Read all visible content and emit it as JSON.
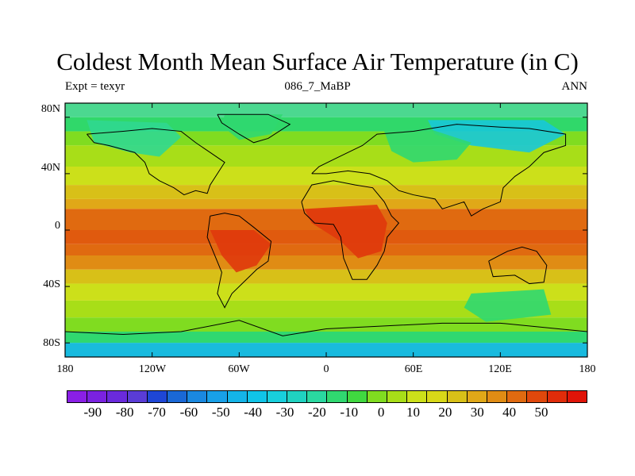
{
  "title": "Coldest Month Mean Surface Air Temperature (in C)",
  "left_label": "Expt = texyr",
  "center_label": "086_7_MaBP",
  "right_label": "ANN",
  "lat_ticks": [
    "80N",
    "40N",
    "0",
    "40S",
    "80S"
  ],
  "lon_ticks": [
    "180",
    "120W",
    "60W",
    "0",
    "60E",
    "120E",
    "180"
  ],
  "colorbar": {
    "labels": [
      "-90",
      "-80",
      "-70",
      "-60",
      "-50",
      "-40",
      "-30",
      "-20",
      "-10",
      "0",
      "10",
      "20",
      "30",
      "40",
      "50"
    ],
    "colors": [
      "#8a1fe6",
      "#7a22e0",
      "#6a2adc",
      "#5a3cd6",
      "#1e46d6",
      "#1a68d6",
      "#1a88e0",
      "#18a0e8",
      "#14b4e8",
      "#10c4e8",
      "#18cfdc",
      "#20d2c0",
      "#2ad8a0",
      "#30d870",
      "#40d840",
      "#80dc20",
      "#a8de18",
      "#cce01a",
      "#d8d818",
      "#d8c018",
      "#e0a818",
      "#e08c14",
      "#e06a10",
      "#e0480c",
      "#e02c0a",
      "#e01408"
    ],
    "highlight_color": "#18c8d8"
  },
  "map": {
    "projection": "cylindrical-equidistant",
    "lon_range": [
      -180,
      180
    ],
    "lat_range": [
      -90,
      90
    ],
    "zonal_bands": [
      {
        "lat": 90,
        "color": "#4cd890"
      },
      {
        "lat": 80,
        "color": "#30d86a"
      },
      {
        "lat": 70,
        "color": "#80dc20"
      },
      {
        "lat": 60,
        "color": "#a8de18"
      },
      {
        "lat": 45,
        "color": "#cce01a"
      },
      {
        "lat": 32,
        "color": "#d8c018"
      },
      {
        "lat": 22,
        "color": "#e0a818"
      },
      {
        "lat": 15,
        "color": "#e06a10"
      },
      {
        "lat": 0,
        "color": "#e05a0e"
      },
      {
        "lat": -10,
        "color": "#e06a10"
      },
      {
        "lat": -18,
        "color": "#e08c14"
      },
      {
        "lat": -28,
        "color": "#d8c018"
      },
      {
        "lat": -38,
        "color": "#cce01a"
      },
      {
        "lat": -50,
        "color": "#a8de18"
      },
      {
        "lat": -62,
        "color": "#80dc20"
      },
      {
        "lat": -72,
        "color": "#30d870"
      },
      {
        "lat": -80,
        "color": "#20d2c0"
      },
      {
        "lat": -86,
        "color": "#18c8d8"
      },
      {
        "lat": -90,
        "color": "#14b4e8"
      }
    ],
    "regions": [
      {
        "name": "north-america-cold",
        "color": "#30d890",
        "poly": [
          [
            -165,
            78
          ],
          [
            -110,
            76
          ],
          [
            -100,
            66
          ],
          [
            -115,
            52
          ],
          [
            -135,
            55
          ],
          [
            -160,
            62
          ]
        ]
      },
      {
        "name": "greenland-cold",
        "color": "#30d870",
        "poly": [
          [
            -70,
            82
          ],
          [
            -30,
            82
          ],
          [
            -38,
            68
          ],
          [
            -60,
            64
          ],
          [
            -72,
            74
          ]
        ]
      },
      {
        "name": "siberia-cold",
        "color": "#18c8d8",
        "poly": [
          [
            70,
            78
          ],
          [
            150,
            78
          ],
          [
            165,
            68
          ],
          [
            140,
            55
          ],
          [
            100,
            60
          ],
          [
            75,
            68
          ]
        ]
      },
      {
        "name": "asia-cool",
        "color": "#30d870",
        "poly": [
          [
            40,
            70
          ],
          [
            70,
            72
          ],
          [
            100,
            62
          ],
          [
            90,
            50
          ],
          [
            60,
            48
          ],
          [
            45,
            56
          ]
        ]
      },
      {
        "name": "africa-hot",
        "color": "#e0380c",
        "poly": [
          [
            -15,
            15
          ],
          [
            35,
            18
          ],
          [
            42,
            5
          ],
          [
            38,
            -15
          ],
          [
            22,
            -20
          ],
          [
            10,
            -8
          ],
          [
            -10,
            5
          ]
        ]
      },
      {
        "name": "south-america-hot",
        "color": "#e0380c",
        "poly": [
          [
            -80,
            0
          ],
          [
            -50,
            0
          ],
          [
            -38,
            -10
          ],
          [
            -48,
            -25
          ],
          [
            -62,
            -30
          ],
          [
            -72,
            -18
          ]
        ]
      },
      {
        "name": "antarctica-cold",
        "color": "#18b8e0",
        "poly": [
          [
            -180,
            -80
          ],
          [
            180,
            -80
          ],
          [
            180,
            -90
          ],
          [
            -180,
            -90
          ]
        ]
      },
      {
        "name": "australia-cool",
        "color": "#30d870",
        "poly": [
          [
            100,
            -45
          ],
          [
            150,
            -42
          ],
          [
            155,
            -60
          ],
          [
            110,
            -65
          ],
          [
            95,
            -55
          ]
        ]
      }
    ],
    "coastlines": [
      [
        [
          -165,
          68
        ],
        [
          -140,
          70
        ],
        [
          -120,
          72
        ],
        [
          -100,
          70
        ],
        [
          -90,
          62
        ],
        [
          -80,
          55
        ],
        [
          -70,
          48
        ],
        [
          -75,
          40
        ],
        [
          -80,
          32
        ],
        [
          -82,
          26
        ],
        [
          -90,
          28
        ],
        [
          -98,
          25
        ],
        [
          -105,
          30
        ],
        [
          -115,
          35
        ],
        [
          -122,
          40
        ],
        [
          -125,
          48
        ],
        [
          -132,
          55
        ],
        [
          -150,
          60
        ],
        [
          -160,
          62
        ],
        [
          -165,
          68
        ]
      ],
      [
        [
          -75,
          82
        ],
        [
          -40,
          82
        ],
        [
          -25,
          75
        ],
        [
          -40,
          65
        ],
        [
          -50,
          62
        ],
        [
          -60,
          68
        ],
        [
          -72,
          76
        ],
        [
          -75,
          82
        ]
      ],
      [
        [
          -10,
          40
        ],
        [
          -5,
          45
        ],
        [
          5,
          50
        ],
        [
          15,
          55
        ],
        [
          25,
          60
        ],
        [
          35,
          68
        ],
        [
          60,
          70
        ],
        [
          90,
          75
        ],
        [
          120,
          73
        ],
        [
          140,
          72
        ],
        [
          165,
          68
        ],
        [
          165,
          60
        ],
        [
          150,
          55
        ],
        [
          140,
          45
        ],
        [
          130,
          38
        ],
        [
          122,
          30
        ],
        [
          120,
          20
        ],
        [
          108,
          15
        ],
        [
          100,
          10
        ],
        [
          95,
          20
        ],
        [
          80,
          15
        ],
        [
          75,
          22
        ],
        [
          60,
          25
        ],
        [
          50,
          28
        ],
        [
          42,
          35
        ],
        [
          30,
          40
        ],
        [
          15,
          42
        ],
        [
          0,
          40
        ],
        [
          -10,
          40
        ]
      ],
      [
        [
          -17,
          20
        ],
        [
          -10,
          32
        ],
        [
          5,
          35
        ],
        [
          20,
          32
        ],
        [
          32,
          30
        ],
        [
          40,
          20
        ],
        [
          45,
          10
        ],
        [
          50,
          5
        ],
        [
          42,
          -5
        ],
        [
          40,
          -15
        ],
        [
          35,
          -25
        ],
        [
          28,
          -35
        ],
        [
          18,
          -35
        ],
        [
          12,
          -20
        ],
        [
          10,
          -5
        ],
        [
          5,
          4
        ],
        [
          -8,
          5
        ],
        [
          -15,
          12
        ],
        [
          -17,
          20
        ]
      ],
      [
        [
          -80,
          10
        ],
        [
          -70,
          12
        ],
        [
          -60,
          10
        ],
        [
          -50,
          2
        ],
        [
          -38,
          -8
        ],
        [
          -40,
          -22
        ],
        [
          -48,
          -28
        ],
        [
          -55,
          -35
        ],
        [
          -65,
          -45
        ],
        [
          -70,
          -55
        ],
        [
          -75,
          -45
        ],
        [
          -72,
          -30
        ],
        [
          -78,
          -15
        ],
        [
          -82,
          -5
        ],
        [
          -80,
          10
        ]
      ],
      [
        [
          112,
          -22
        ],
        [
          125,
          -15
        ],
        [
          135,
          -12
        ],
        [
          145,
          -15
        ],
        [
          152,
          -25
        ],
        [
          150,
          -37
        ],
        [
          140,
          -38
        ],
        [
          130,
          -32
        ],
        [
          115,
          -33
        ],
        [
          112,
          -22
        ]
      ],
      [
        [
          -180,
          -72
        ],
        [
          -140,
          -74
        ],
        [
          -100,
          -72
        ],
        [
          -60,
          -64
        ],
        [
          -30,
          -75
        ],
        [
          0,
          -70
        ],
        [
          40,
          -68
        ],
        [
          80,
          -66
        ],
        [
          120,
          -66
        ],
        [
          160,
          -70
        ],
        [
          180,
          -72
        ]
      ]
    ]
  }
}
